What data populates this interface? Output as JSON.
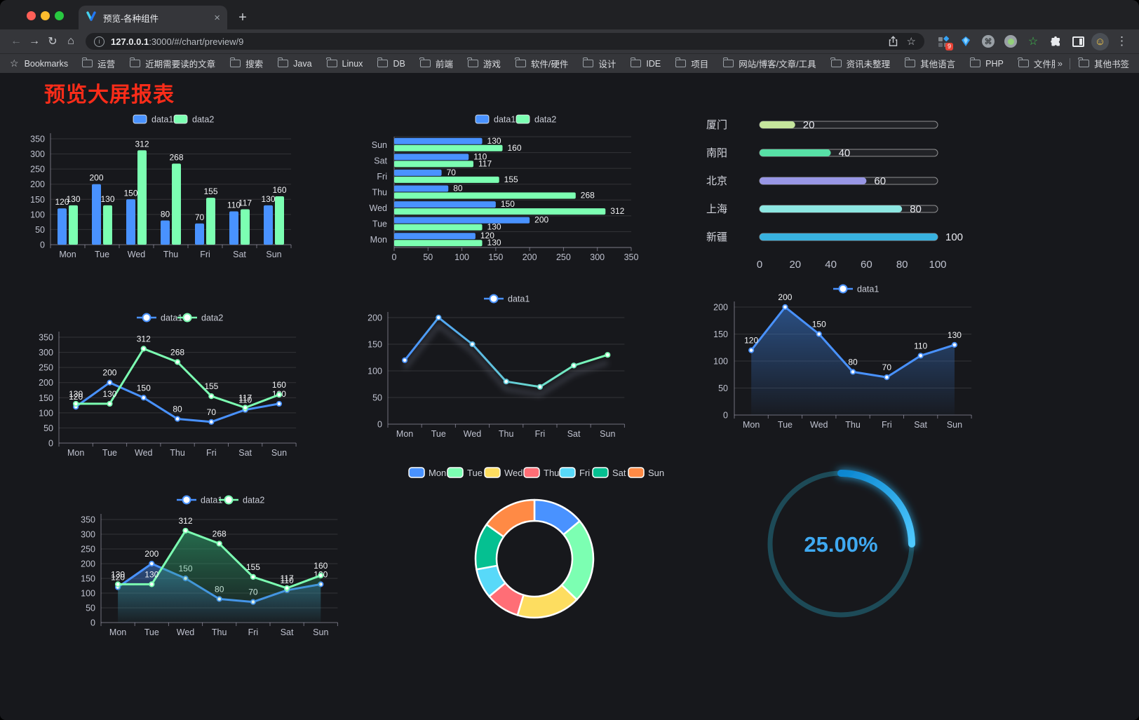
{
  "browser": {
    "tab_title": "预览-各种组件",
    "url_host": "127.0.0.1",
    "url_rest": ":3000/#/chart/preview/9",
    "extension_badge": "9",
    "bookmarks_label": "Bookmarks",
    "bookmarks": [
      "运营",
      "近期需要读的文章",
      "搜索",
      "Java",
      "Linux",
      "DB",
      "前端",
      "游戏",
      "软件/硬件",
      "设计",
      "IDE",
      "项目",
      "网站/博客/文章/工具",
      "资讯未整理",
      "其他语言",
      "PHP",
      "文件服务器"
    ],
    "bookmarks_overflow": "»",
    "other_bookmarks_label": "其他书签",
    "icons": {
      "back": "←",
      "forward": "→",
      "reload": "↻",
      "home": "⌂",
      "site_info": "i",
      "bookmark_star": "☆",
      "command": "⌘",
      "green_star": "☆",
      "menu": "⋮",
      "smiley": "☺",
      "new_tab": "+",
      "tab_close": "×",
      "bookmarks_star": "☆"
    }
  },
  "page": {
    "title": "预览大屏报表"
  },
  "chart_data": [
    {
      "id": "grouped-bar",
      "type": "bar",
      "categories": [
        "Mon",
        "Tue",
        "Wed",
        "Thu",
        "Fri",
        "Sat",
        "Sun"
      ],
      "series": [
        {
          "name": "data1",
          "color": "#4992ff",
          "values": [
            120,
            200,
            150,
            80,
            70,
            110,
            130
          ]
        },
        {
          "name": "data2",
          "color": "#7cffb2",
          "values": [
            130,
            130,
            312,
            268,
            155,
            117,
            160
          ]
        }
      ],
      "ylim": [
        0,
        350
      ],
      "yticks": [
        0,
        50,
        100,
        150,
        200,
        250,
        300,
        350
      ],
      "legend_position": "top",
      "grid": true,
      "labels": true
    },
    {
      "id": "horizontal-bar",
      "type": "bar",
      "orientation": "horizontal",
      "categories": [
        "Mon",
        "Tue",
        "Wed",
        "Thu",
        "Fri",
        "Sat",
        "Sun"
      ],
      "series": [
        {
          "name": "data1",
          "color": "#4992ff",
          "values": [
            120,
            200,
            150,
            80,
            70,
            110,
            130
          ]
        },
        {
          "name": "data2",
          "color": "#7cffb2",
          "values": [
            130,
            130,
            312,
            268,
            155,
            117,
            160
          ]
        }
      ],
      "xlim": [
        0,
        350
      ],
      "xticks": [
        0,
        50,
        100,
        150,
        200,
        250,
        300,
        350
      ],
      "legend_position": "top",
      "labels": true
    },
    {
      "id": "progress-bars",
      "type": "bar",
      "orientation": "progress",
      "max": 100,
      "rows": [
        {
          "label": "厦门",
          "value": 20,
          "color": "#c5e59c"
        },
        {
          "label": "南阳",
          "value": 40,
          "color": "#57e0a6"
        },
        {
          "label": "北京",
          "value": 60,
          "color": "#9896e5"
        },
        {
          "label": "上海",
          "value": 80,
          "color": "#8de7e2"
        },
        {
          "label": "新疆",
          "value": 100,
          "color": "#38b2e0"
        }
      ],
      "xticks": [
        0,
        20,
        40,
        60,
        80,
        100
      ]
    },
    {
      "id": "line-two-series",
      "type": "line",
      "categories": [
        "Mon",
        "Tue",
        "Wed",
        "Thu",
        "Fri",
        "Sat",
        "Sun"
      ],
      "series": [
        {
          "name": "data1",
          "color": "#4992ff",
          "values": [
            120,
            200,
            150,
            80,
            70,
            110,
            130
          ]
        },
        {
          "name": "data2",
          "color": "#7cffb2",
          "values": [
            130,
            130,
            312,
            268,
            155,
            117,
            160
          ]
        }
      ],
      "ylim": [
        0,
        350
      ],
      "yticks": [
        0,
        50,
        100,
        150,
        200,
        250,
        300,
        350
      ],
      "labels": true
    },
    {
      "id": "line-gradient",
      "type": "line",
      "categories": [
        "Mon",
        "Tue",
        "Wed",
        "Thu",
        "Fri",
        "Sat",
        "Sun"
      ],
      "series": [
        {
          "name": "data1",
          "color": "#4992ff",
          "gradient": [
            "#4992ff",
            "#7cffb2"
          ],
          "values": [
            120,
            200,
            150,
            80,
            70,
            110,
            130
          ]
        }
      ],
      "ylim": [
        0,
        200
      ],
      "yticks": [
        0,
        50,
        100,
        150,
        200
      ],
      "labels": false
    },
    {
      "id": "line-area-single",
      "type": "area",
      "categories": [
        "Mon",
        "Tue",
        "Wed",
        "Thu",
        "Fri",
        "Sat",
        "Sun"
      ],
      "series": [
        {
          "name": "data1",
          "color": "#4992ff",
          "values": [
            120,
            200,
            150,
            80,
            70,
            110,
            130
          ]
        }
      ],
      "ylim": [
        0,
        200
      ],
      "yticks": [
        0,
        50,
        100,
        150,
        200
      ],
      "labels": true
    },
    {
      "id": "area-two-series",
      "type": "area",
      "categories": [
        "Mon",
        "Tue",
        "Wed",
        "Thu",
        "Fri",
        "Sat",
        "Sun"
      ],
      "series": [
        {
          "name": "data1",
          "color": "#4992ff",
          "values": [
            120,
            200,
            150,
            80,
            70,
            110,
            130
          ]
        },
        {
          "name": "data2",
          "color": "#7cffb2",
          "values": [
            130,
            130,
            312,
            268,
            155,
            117,
            160
          ]
        }
      ],
      "ylim": [
        0,
        350
      ],
      "yticks": [
        0,
        50,
        100,
        150,
        200,
        250,
        300,
        350
      ],
      "labels": true
    },
    {
      "id": "donut",
      "type": "pie",
      "categories": [
        "Mon",
        "Tue",
        "Wed",
        "Thu",
        "Fri",
        "Sat",
        "Sun"
      ],
      "values": [
        120,
        200,
        150,
        80,
        70,
        110,
        130
      ],
      "colors": [
        "#4992ff",
        "#7cffb2",
        "#fddd60",
        "#ff6e76",
        "#58d9f9",
        "#05c091",
        "#ff8a45"
      ],
      "legend_position": "top"
    },
    {
      "id": "gauge",
      "type": "gauge",
      "value": 25,
      "max": 100,
      "value_label": "25.00%",
      "color": "#29b6f6",
      "track_color": "#1d4a57"
    }
  ]
}
